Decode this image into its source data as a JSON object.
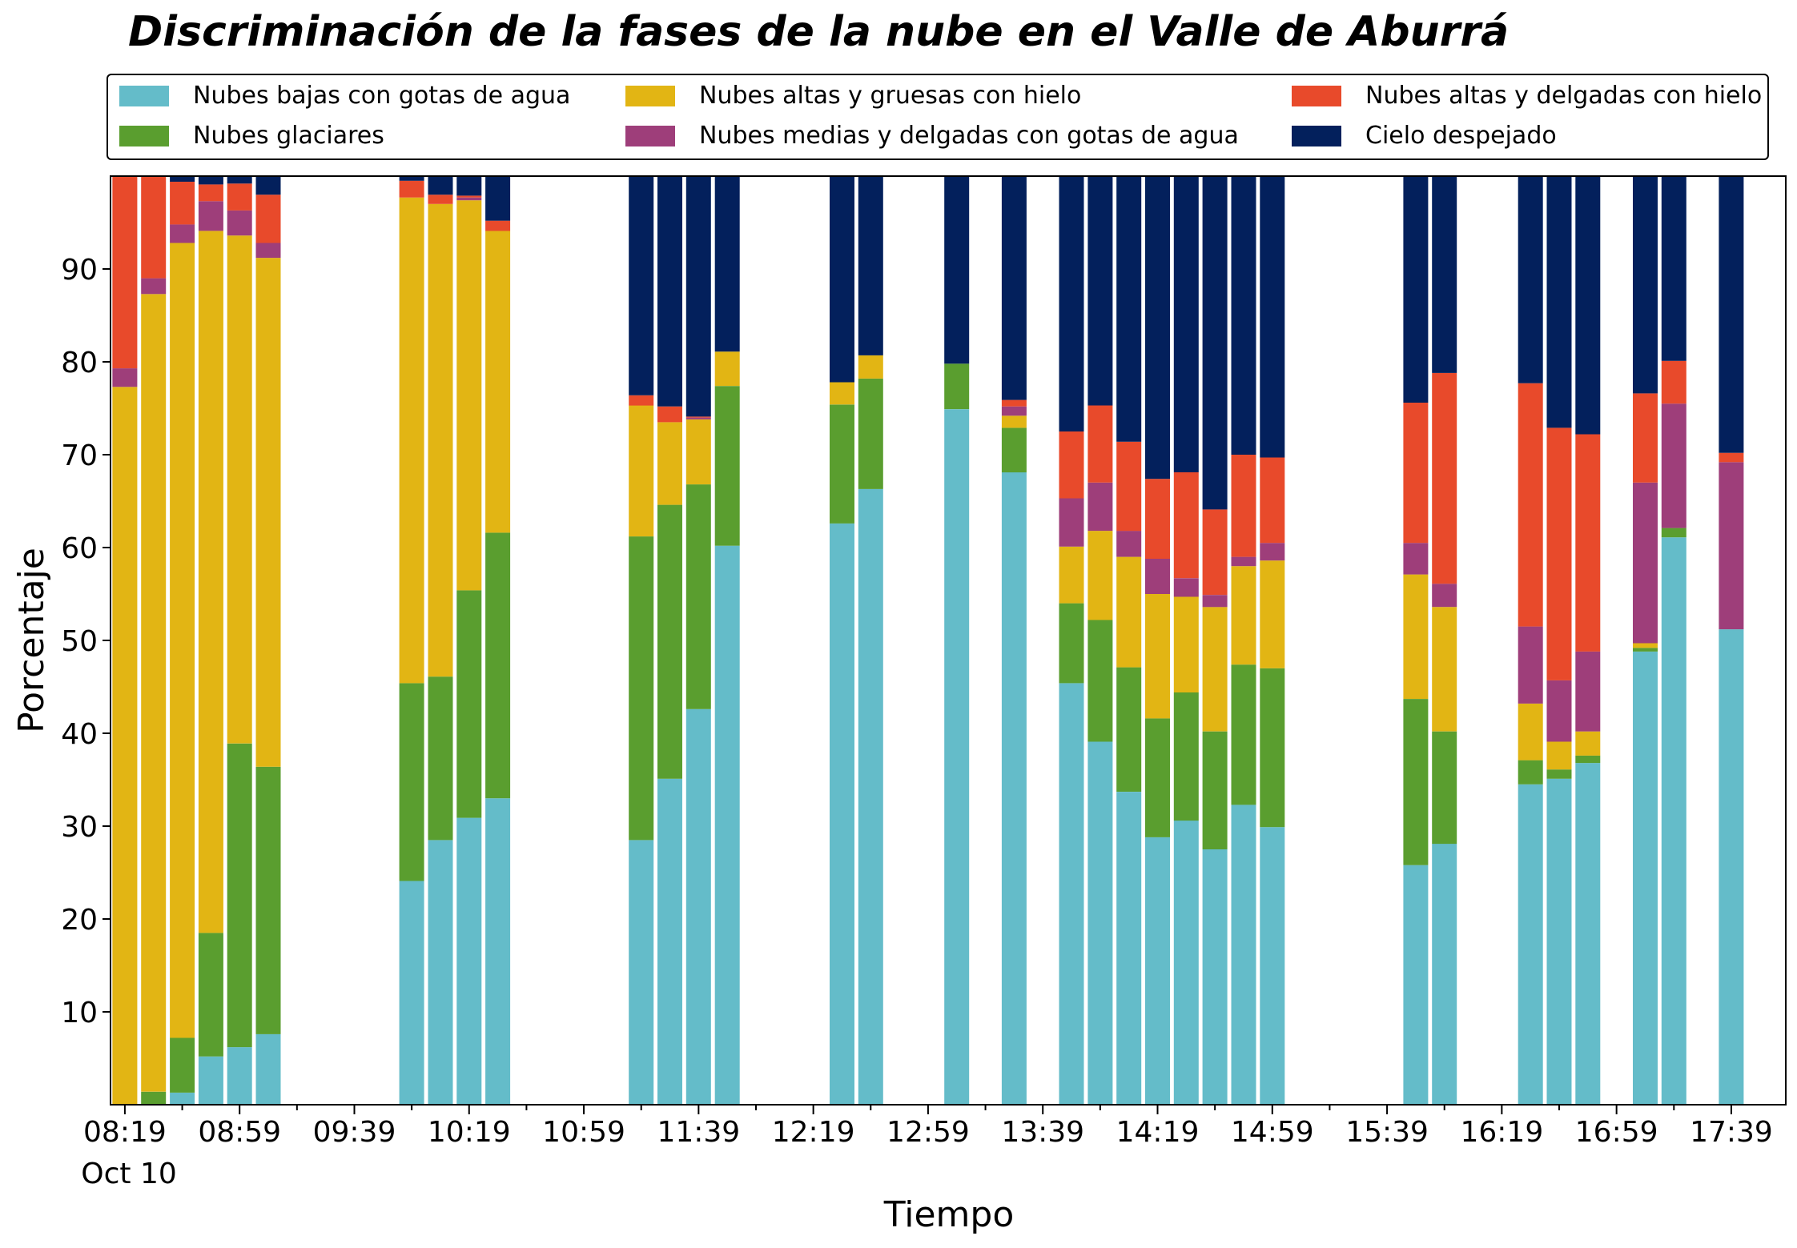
{
  "chart_data": {
    "type": "bar",
    "stacked": true,
    "title": "Discriminación de la fases de la nube en el Valle de Aburrá",
    "xlabel": "Tiempo",
    "ylabel": "Porcentaje",
    "ylim": [
      0,
      100
    ],
    "yticks": [
      10,
      20,
      30,
      40,
      50,
      60,
      70,
      80,
      90
    ],
    "xticks": [
      "08:19",
      "08:59",
      "09:39",
      "10:19",
      "10:59",
      "11:39",
      "12:19",
      "12:59",
      "13:39",
      "14:19",
      "14:59",
      "15:39",
      "16:19",
      "16:59",
      "17:39"
    ],
    "date_label": "Oct 10",
    "legend_position": "top",
    "times": [
      "08:19",
      "08:29",
      "08:39",
      "08:49",
      "08:59",
      "09:09",
      "09:59",
      "10:09",
      "10:19",
      "10:29",
      "11:19",
      "11:29",
      "11:39",
      "11:49",
      "12:29",
      "12:39",
      "13:09",
      "13:29",
      "13:49",
      "13:59",
      "14:09",
      "14:19",
      "14:29",
      "14:39",
      "14:49",
      "14:59",
      "15:49",
      "15:59",
      "16:29",
      "16:39",
      "16:49",
      "17:09",
      "17:19",
      "17:39"
    ],
    "series": [
      {
        "name": "Nubes bajas con gotas de agua",
        "color": "#64bcc9",
        "values": [
          0,
          0,
          1.3,
          5.2,
          6.2,
          7.6,
          24.1,
          28.5,
          30.9,
          33.0,
          28.5,
          35.1,
          42.6,
          60.2,
          62.6,
          66.3,
          74.9,
          68.1,
          45.4,
          39.1,
          33.7,
          28.8,
          30.6,
          27.5,
          32.3,
          29.9,
          25.8,
          28.1,
          34.5,
          35.1,
          36.8,
          48.8,
          61.1,
          51.2
        ]
      },
      {
        "name": "Nubes glaciares",
        "color": "#5a9e2f",
        "values": [
          0,
          1.4,
          5.9,
          13.3,
          32.7,
          28.8,
          21.3,
          17.6,
          24.5,
          28.6,
          32.7,
          29.5,
          24.2,
          17.2,
          12.8,
          11.9,
          4.9,
          4.8,
          8.6,
          13.1,
          13.4,
          12.8,
          13.8,
          12.7,
          15.1,
          17.1,
          17.9,
          12.1,
          2.6,
          1.0,
          0.8,
          0.4,
          1.0,
          0
        ]
      },
      {
        "name": "Nubes altas y gruesas con hielo",
        "color": "#e2b514",
        "values": [
          77.3,
          85.9,
          85.6,
          75.6,
          54.7,
          54.8,
          52.3,
          50.9,
          42.0,
          32.5,
          14.1,
          8.9,
          7.0,
          3.7,
          2.4,
          2.5,
          0,
          1.3,
          6.1,
          9.6,
          11.9,
          13.4,
          10.3,
          13.4,
          10.6,
          11.6,
          13.4,
          13.4,
          6.1,
          3.0,
          2.6,
          0.5,
          0,
          0
        ]
      },
      {
        "name": "Nubes medias y delgadas con gotas de agua",
        "color": "#9e3e7a",
        "values": [
          2.0,
          1.7,
          2.0,
          3.2,
          2.7,
          1.6,
          0,
          0,
          0.3,
          0,
          0,
          0,
          0.2,
          0,
          0,
          0,
          0,
          1.0,
          5.2,
          5.2,
          2.8,
          3.8,
          2.0,
          1.3,
          1.0,
          1.9,
          3.4,
          2.5,
          8.3,
          6.6,
          8.6,
          17.3,
          13.4,
          18.0
        ]
      },
      {
        "name": "Nubes altas y delgadas con hielo",
        "color": "#e84a2b",
        "values": [
          20.7,
          11.0,
          4.6,
          1.8,
          2.9,
          5.2,
          1.8,
          1.0,
          0.2,
          1.1,
          1.1,
          1.7,
          0.1,
          0,
          0,
          0,
          0,
          0.7,
          7.2,
          8.3,
          9.6,
          8.6,
          11.4,
          9.2,
          11.0,
          9.2,
          15.1,
          22.7,
          26.2,
          27.2,
          23.4,
          9.6,
          4.6,
          1.0
        ]
      },
      {
        "name": "Cielo despejado",
        "color": "#03205c",
        "values": [
          0,
          0,
          0.6,
          0.9,
          0.8,
          2.0,
          0.5,
          2.0,
          2.1,
          4.8,
          23.6,
          24.8,
          25.9,
          18.9,
          22.2,
          19.3,
          20.2,
          24.1,
          27.5,
          24.7,
          28.6,
          32.6,
          31.9,
          35.9,
          30.0,
          30.3,
          24.4,
          21.2,
          22.3,
          27.1,
          27.8,
          23.4,
          19.9,
          29.8
        ]
      }
    ]
  }
}
